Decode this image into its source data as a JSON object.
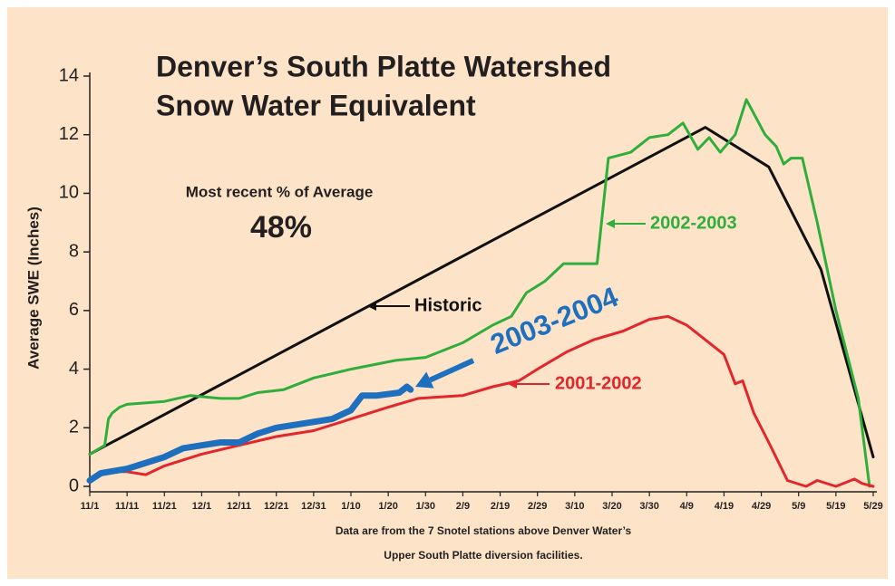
{
  "chart_data": {
    "type": "line",
    "title": [
      "Denver’s South Platte Watershed",
      "Snow Water Equivalent"
    ],
    "annotations": [
      "Most recent % of Average",
      "48%"
    ],
    "ylabel": "Average SWE (Inches)",
    "footnote": [
      "Data are from the 7 Snotel stations above Denver Water’s",
      "Upper South Platte diversion facilities."
    ],
    "xlim": [
      0,
      210
    ],
    "xticks": [
      {
        "value": 0,
        "label": "11/1"
      },
      {
        "value": 10,
        "label": "11/11"
      },
      {
        "value": 20,
        "label": "11/21"
      },
      {
        "value": 30,
        "label": "12/1"
      },
      {
        "value": 40,
        "label": "12/11"
      },
      {
        "value": 50,
        "label": "12/21"
      },
      {
        "value": 60,
        "label": "12/31"
      },
      {
        "value": 70,
        "label": "1/10"
      },
      {
        "value": 80,
        "label": "1/20"
      },
      {
        "value": 90,
        "label": "1/30"
      },
      {
        "value": 100,
        "label": "2/9"
      },
      {
        "value": 110,
        "label": "2/19"
      },
      {
        "value": 120,
        "label": "2/29"
      },
      {
        "value": 130,
        "label": "3/10"
      },
      {
        "value": 140,
        "label": "3/20"
      },
      {
        "value": 150,
        "label": "3/30"
      },
      {
        "value": 160,
        "label": "4/9"
      },
      {
        "value": 170,
        "label": "4/19"
      },
      {
        "value": 180,
        "label": "4/29"
      },
      {
        "value": 190,
        "label": "5/9"
      },
      {
        "value": 200,
        "label": "5/19"
      },
      {
        "value": 210,
        "label": "5/29"
      }
    ],
    "ylim": [
      0,
      14
    ],
    "yticks": [
      0,
      2,
      4,
      6,
      8,
      10,
      12,
      14
    ],
    "series": [
      {
        "name": "Historic",
        "color": "#111111",
        "x": [
          0,
          165,
          182,
          196,
          210
        ],
        "values": [
          1.1,
          12.25,
          10.9,
          7.4,
          1.0
        ]
      },
      {
        "name": "2002-2003",
        "color": "#2fae3c",
        "x": [
          0,
          4,
          5,
          6,
          8,
          10,
          20,
          27,
          35,
          40,
          45,
          52,
          60,
          70,
          82,
          90,
          100,
          108,
          113,
          117,
          122,
          127,
          136,
          139,
          145,
          150,
          155,
          159,
          163,
          166,
          169,
          173,
          176,
          181,
          184,
          186,
          188,
          191,
          195,
          200,
          206,
          209
        ],
        "values": [
          1.1,
          1.4,
          2.3,
          2.5,
          2.7,
          2.8,
          2.9,
          3.1,
          3.0,
          3.0,
          3.2,
          3.3,
          3.7,
          4.0,
          4.3,
          4.4,
          4.9,
          5.5,
          5.8,
          6.6,
          7.0,
          7.6,
          7.6,
          11.2,
          11.4,
          11.9,
          12.0,
          12.4,
          11.5,
          11.9,
          11.4,
          12.0,
          13.2,
          12.0,
          11.6,
          11.0,
          11.2,
          11.2,
          9.0,
          6.0,
          3.0,
          0.0
        ]
      },
      {
        "name": "2001-2002",
        "color": "#e3262b",
        "x": [
          0,
          5,
          10,
          15,
          20,
          30,
          40,
          50,
          60,
          70,
          80,
          88,
          100,
          108,
          115,
          120,
          128,
          135,
          143,
          150,
          155,
          160,
          165,
          170,
          173,
          175,
          178,
          182,
          187,
          192,
          195,
          200,
          205,
          207,
          210
        ],
        "values": [
          0.2,
          0.5,
          0.5,
          0.4,
          0.7,
          1.1,
          1.4,
          1.7,
          1.9,
          2.3,
          2.7,
          3.0,
          3.1,
          3.4,
          3.6,
          4.0,
          4.6,
          5.0,
          5.3,
          5.7,
          5.8,
          5.5,
          5.0,
          4.5,
          3.5,
          3.6,
          2.5,
          1.5,
          0.2,
          0.0,
          0.2,
          0.0,
          0.25,
          0.1,
          0.0
        ]
      },
      {
        "name": "2003-2004",
        "color": "#1f6fbf",
        "x": [
          0,
          3,
          10,
          20,
          25,
          30,
          35,
          40,
          45,
          50,
          55,
          60,
          65,
          70,
          73,
          77,
          83,
          85,
          86
        ],
        "values": [
          0.2,
          0.45,
          0.6,
          1.0,
          1.3,
          1.4,
          1.5,
          1.5,
          1.8,
          2.0,
          2.1,
          2.2,
          2.3,
          2.6,
          3.1,
          3.1,
          3.2,
          3.4,
          3.3
        ]
      }
    ]
  }
}
